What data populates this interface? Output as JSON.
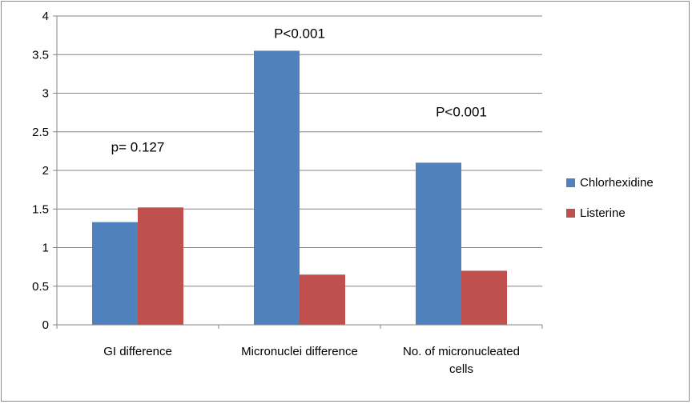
{
  "chart_data": {
    "type": "bar",
    "title": "",
    "xlabel": "",
    "ylabel": "",
    "ylim": [
      0,
      4
    ],
    "yticks": [
      "0",
      "0.5",
      "1",
      "1.5",
      "2",
      "2.5",
      "3",
      "3.5",
      "4"
    ],
    "grid": true,
    "legend_position": "right",
    "categories": [
      [
        "GI difference"
      ],
      [
        "Micronuclei difference"
      ],
      [
        "No. of micronucleated",
        "cells"
      ]
    ],
    "series": [
      {
        "name": "Chlorhexidine",
        "color": "#4f81bd",
        "values": [
          1.33,
          3.55,
          2.1
        ]
      },
      {
        "name": "Listerine",
        "color": "#c0504d",
        "values": [
          1.52,
          0.65,
          0.7
        ]
      }
    ],
    "annotations": [
      "p= 0.127",
      "P<0.001",
      "P<0.001"
    ]
  }
}
